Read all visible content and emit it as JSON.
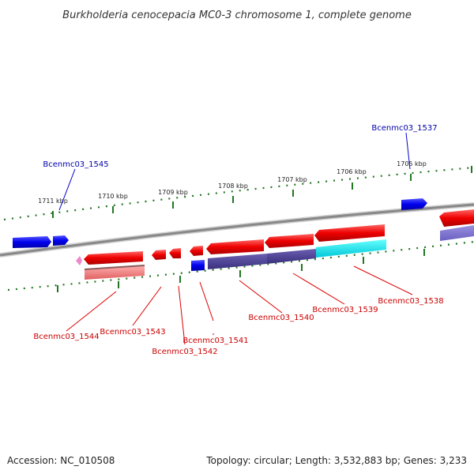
{
  "title": "Burkholderia cenocepacia MC0-3 chromosome 1, complete genome",
  "footer": {
    "accession": "Accession: NC_010508",
    "topology": "Topology: circular; Length: 3,532,883 bp; Genes: 3,233"
  },
  "ruler_labels": [
    "1711 kbp",
    "1710 kbp",
    "1709 kbp",
    "1708 kbp",
    "1707 kbp",
    "1706 kbp",
    "1705 kbp"
  ],
  "gene_labels_top": [
    "Bcenmc03_1545",
    "Bcenmc03_1537"
  ],
  "gene_labels_bottom": [
    "Bcenmc03_1544",
    "Bcenmc03_1543",
    "Bcenmc03_1542",
    "Bcenmc03_1541",
    "Bcenmc03_1540",
    "Bcenmc03_1539",
    "Bcenmc03_1538"
  ],
  "colors": {
    "forward_gene": "#0000ee",
    "reverse_gene": "#ee0000",
    "rna_gene": "#4a3f8f",
    "cyan_gene": "#00e0ee",
    "top_label": "#0000aa",
    "bottom_label": "#cc0000",
    "ruler_tick": "#227722",
    "backbone": "#888888"
  }
}
